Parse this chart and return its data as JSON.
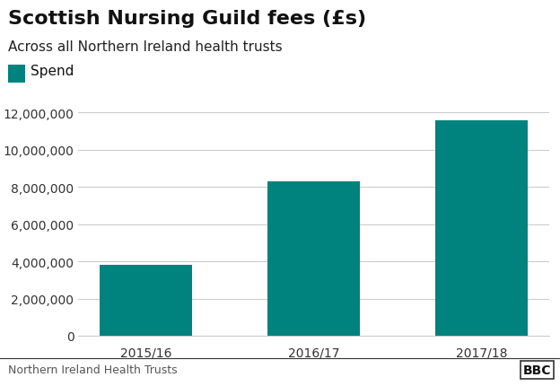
{
  "title": "Scottish Nursing Guild fees (£s)",
  "subtitle": "Across all Northern Ireland health trusts",
  "legend_label": "Spend",
  "categories": [
    "2015/16",
    "2016/17",
    "2017/18"
  ],
  "values": [
    3800000,
    8300000,
    11600000
  ],
  "bar_color": "#00827F",
  "ylim": [
    0,
    13000000
  ],
  "yticks": [
    0,
    2000000,
    4000000,
    6000000,
    8000000,
    10000000,
    12000000
  ],
  "footnote": "Northern Ireland Health Trusts",
  "bbc_label": "BBC",
  "background_color": "#ffffff",
  "title_fontsize": 16,
  "subtitle_fontsize": 11,
  "tick_fontsize": 10,
  "legend_fontsize": 11,
  "footnote_fontsize": 9,
  "grid_color": "#cccccc",
  "bar_edge_color": "none"
}
